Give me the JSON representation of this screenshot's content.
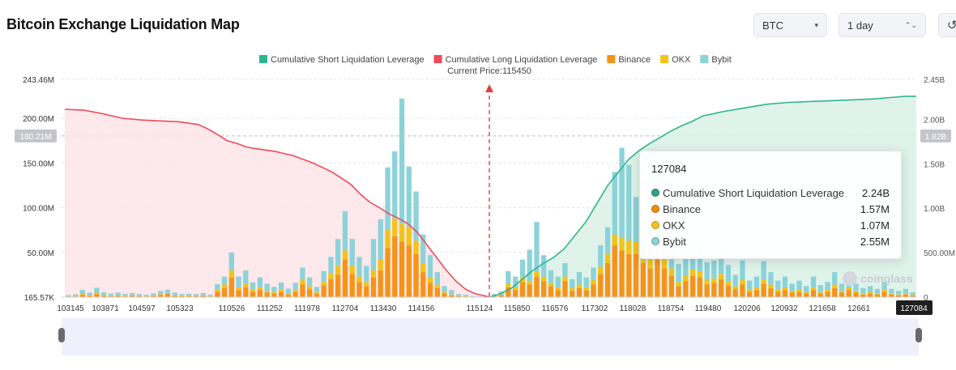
{
  "header": {
    "title": "Bitcoin Exchange Liquidation Map",
    "coin_select": {
      "value": "BTC",
      "caret": "▾"
    },
    "period_select": {
      "value": "1 day",
      "caret": "⌃⌄"
    },
    "reset_icon": "refresh-icon"
  },
  "colors": {
    "short_line": "#2fb58d",
    "short_fill": "#d9f1e8",
    "long_line": "#ef4a5c",
    "long_fill": "#fde4e7",
    "binance": "#f7931a",
    "okx": "#f3c31b",
    "bybit": "#8bd3d9",
    "current_price": "#e53e3e"
  },
  "tooltip": {
    "title": "127084",
    "rows": [
      {
        "label": "Cumulative Short Liquidation Leverage",
        "value": "2.24B",
        "color": "#2fa184"
      },
      {
        "label": "Binance",
        "value": "1.57M",
        "color": "#f08a12"
      },
      {
        "label": "OKX",
        "value": "1.07M",
        "color": "#f3c31b"
      },
      {
        "label": "Bybit",
        "value": "2.55M",
        "color": "#8bd3d9"
      }
    ]
  },
  "watermark": "coinglass",
  "chart_data": {
    "type": "bar",
    "legend": [
      {
        "name": "Cumulative Short Liquidation Leverage",
        "color": "#2fb58d"
      },
      {
        "name": "Cumulative Long Liquidation Leverage",
        "color": "#ef4a5c"
      },
      {
        "name": "Binance",
        "color": "#f7931a"
      },
      {
        "name": "OKX",
        "color": "#f3c31b"
      },
      {
        "name": "Bybit",
        "color": "#8bd3d9"
      }
    ],
    "legend_position": "top-center",
    "current_price_label": "Current Price:115450",
    "current_price": 115450,
    "x_ticks": [
      "103145",
      "103871",
      "104597",
      "105323",
      "110526",
      "111252",
      "111978",
      "112704",
      "113430",
      "114156",
      "115124",
      "115850",
      "116576",
      "117302",
      "118028",
      "118754",
      "119480",
      "120206",
      "120932",
      "121658",
      "12661"
    ],
    "x_highlight_label": "127084",
    "y_left": {
      "ticks": [
        "243.46M",
        "200.00M",
        "150.00M",
        "100.00M",
        "50.00M",
        "165.57K"
      ],
      "min": 165570,
      "max": 243460000,
      "marker": "180.21M"
    },
    "y_right": {
      "ticks": [
        "2.45B",
        "2.00B",
        "1.50B",
        "1.00B",
        "500.00M",
        "0"
      ],
      "min": 0,
      "max": 2450000000,
      "marker": "1.82B"
    },
    "grid": true,
    "bars_million": [
      [
        0.5,
        0.3,
        1.5
      ],
      [
        0.8,
        0.4,
        2.0
      ],
      [
        2.5,
        1.0,
        4.5
      ],
      [
        1.5,
        0.5,
        3.0
      ],
      [
        3.5,
        1.5,
        5.5
      ],
      [
        1.5,
        0.8,
        3.0
      ],
      [
        1.0,
        0.5,
        2.5
      ],
      [
        1.5,
        0.7,
        3.0
      ],
      [
        1.0,
        0.5,
        2.0
      ],
      [
        1.5,
        0.6,
        2.5
      ],
      [
        1.0,
        0.4,
        2.0
      ],
      [
        0.8,
        0.3,
        1.5
      ],
      [
        1.2,
        0.5,
        2.5
      ],
      [
        2.5,
        1.0,
        3.5
      ],
      [
        3.5,
        1.2,
        3.5
      ],
      [
        1.5,
        0.7,
        3.0
      ],
      [
        1.0,
        0.5,
        2.0
      ],
      [
        1.2,
        0.5,
        2.0
      ],
      [
        1.0,
        0.4,
        2.0
      ],
      [
        1.5,
        0.6,
        2.5
      ],
      [
        0.8,
        0.3,
        1.5
      ],
      [
        6.0,
        2.5,
        6.0
      ],
      [
        10.0,
        4.0,
        9.0
      ],
      [
        22.0,
        8.0,
        20.0
      ],
      [
        8.0,
        3.0,
        12.0
      ],
      [
        11.0,
        4.0,
        15.0
      ],
      [
        6.0,
        2.5,
        8.0
      ],
      [
        8.0,
        3.0,
        11.0
      ],
      [
        5.0,
        2.0,
        8.0
      ],
      [
        4.0,
        1.5,
        6.0
      ],
      [
        6.0,
        2.5,
        8.0
      ],
      [
        3.0,
        1.5,
        5.0
      ],
      [
        6.0,
        2.0,
        8.0
      ],
      [
        14.0,
        5.0,
        14.0
      ],
      [
        9.0,
        3.0,
        10.0
      ],
      [
        4.0,
        1.5,
        6.0
      ],
      [
        13.0,
        4.0,
        12.0
      ],
      [
        20.0,
        7.0,
        18.0
      ],
      [
        25.0,
        10.0,
        30.0
      ],
      [
        42.0,
        10.0,
        44.0
      ],
      [
        26.0,
        9.0,
        30.0
      ],
      [
        17.0,
        6.0,
        22.0
      ],
      [
        12.0,
        5.0,
        18.0
      ],
      [
        22.0,
        8.0,
        35.0
      ],
      [
        30.0,
        12.0,
        45.0
      ],
      [
        55.0,
        20.0,
        70.0
      ],
      [
        68.0,
        20.0,
        75.0
      ],
      [
        62.0,
        20.0,
        140.0
      ],
      [
        58.0,
        20.0,
        68.0
      ],
      [
        48.0,
        15.0,
        55.0
      ],
      [
        28.0,
        10.0,
        32.0
      ],
      [
        16.0,
        6.0,
        25.0
      ],
      [
        10.0,
        4.0,
        14.0
      ],
      [
        4.0,
        1.5,
        7.0
      ],
      [
        2.0,
        1.0,
        5.0
      ],
      [
        1.0,
        0.4,
        2.0
      ],
      [
        0.8,
        0.3,
        1.5
      ],
      [
        0.3,
        0.1,
        0.6
      ],
      [
        0.3,
        0.1,
        0.5
      ],
      [
        0.5,
        0.2,
        0.8
      ],
      [
        1.0,
        0.4,
        2.0
      ],
      [
        2.0,
        1.0,
        3.5
      ],
      [
        11.0,
        4.0,
        14.0
      ],
      [
        8.0,
        3.0,
        12.0
      ],
      [
        17.0,
        5.0,
        20.0
      ],
      [
        14.0,
        4.0,
        35.0
      ],
      [
        23.0,
        6.0,
        55.0
      ],
      [
        18.0,
        5.0,
        24.0
      ],
      [
        12.0,
        4.0,
        14.0
      ],
      [
        8.0,
        3.0,
        12.0
      ],
      [
        18.0,
        5.0,
        15.0
      ],
      [
        7.0,
        3.0,
        10.0
      ],
      [
        10.0,
        4.0,
        14.0
      ],
      [
        8.0,
        3.0,
        11.0
      ],
      [
        14.0,
        5.0,
        14.0
      ],
      [
        26.0,
        8.0,
        24.0
      ],
      [
        38.0,
        10.0,
        30.0
      ],
      [
        58.0,
        12.0,
        70.0
      ],
      [
        52.0,
        15.0,
        100.0
      ],
      [
        48.0,
        15.0,
        85.0
      ],
      [
        48.0,
        14.0,
        50.0
      ],
      [
        38.0,
        12.0,
        45.0
      ],
      [
        32.0,
        10.0,
        35.0
      ],
      [
        42.0,
        12.0,
        40.0
      ],
      [
        32.0,
        10.0,
        35.0
      ],
      [
        24.0,
        8.0,
        28.0
      ],
      [
        12.0,
        5.0,
        20.0
      ],
      [
        18.0,
        6.0,
        24.0
      ],
      [
        24.0,
        7.0,
        28.0
      ],
      [
        22.0,
        7.0,
        26.0
      ],
      [
        14.0,
        5.0,
        20.0
      ],
      [
        16.0,
        5.0,
        20.0
      ],
      [
        20.0,
        6.0,
        24.0
      ],
      [
        13.0,
        5.0,
        18.0
      ],
      [
        9.0,
        3.0,
        13.0
      ],
      [
        14.0,
        5.0,
        22.0
      ],
      [
        6.0,
        2.5,
        10.0
      ],
      [
        8.0,
        3.0,
        12.0
      ],
      [
        15.0,
        5.0,
        20.0
      ],
      [
        10.0,
        4.0,
        14.0
      ],
      [
        6.0,
        2.5,
        10.0
      ],
      [
        8.0,
        3.0,
        12.0
      ],
      [
        5.0,
        2.0,
        8.0
      ],
      [
        6.0,
        2.5,
        10.0
      ],
      [
        4.0,
        1.5,
        7.0
      ],
      [
        8.0,
        3.0,
        12.0
      ],
      [
        4.0,
        1.5,
        8.0
      ],
      [
        6.0,
        2.0,
        9.0
      ],
      [
        10.0,
        4.0,
        14.0
      ],
      [
        5.0,
        2.0,
        8.0
      ],
      [
        8.0,
        3.0,
        12.0
      ],
      [
        5.0,
        2.0,
        8.0
      ],
      [
        3.0,
        1.2,
        6.0
      ],
      [
        4.0,
        1.5,
        7.0
      ],
      [
        3.0,
        1.2,
        5.0
      ],
      [
        6.0,
        2.0,
        9.0
      ],
      [
        3.0,
        1.2,
        5.0
      ],
      [
        2.0,
        1.0,
        4.0
      ],
      [
        3.0,
        1.2,
        5.0
      ],
      [
        1.6,
        1.1,
        2.6
      ]
    ],
    "long_curve_million": [
      [
        0,
        210
      ],
      [
        10,
        209
      ],
      [
        20,
        205
      ],
      [
        30,
        200
      ],
      [
        40,
        198
      ],
      [
        50,
        197
      ],
      [
        60,
        196
      ],
      [
        70,
        193
      ],
      [
        75,
        188
      ],
      [
        80,
        182
      ],
      [
        85,
        175
      ],
      [
        90,
        172
      ],
      [
        95,
        168
      ],
      [
        100,
        166
      ],
      [
        110,
        163
      ],
      [
        120,
        158
      ],
      [
        130,
        150
      ],
      [
        140,
        140
      ],
      [
        150,
        126
      ],
      [
        155,
        115
      ],
      [
        160,
        106
      ],
      [
        165,
        100
      ],
      [
        170,
        93
      ],
      [
        175,
        88
      ],
      [
        180,
        82
      ],
      [
        185,
        72
      ],
      [
        190,
        58
      ],
      [
        195,
        44
      ],
      [
        200,
        30
      ],
      [
        205,
        18
      ],
      [
        210,
        9
      ],
      [
        215,
        4
      ],
      [
        220,
        1.5
      ],
      [
        223,
        0
      ]
    ],
    "short_curve_billion": [
      [
        0,
        0
      ],
      [
        5,
        0.04
      ],
      [
        10,
        0.1
      ],
      [
        15,
        0.2
      ],
      [
        20,
        0.3
      ],
      [
        25,
        0.38
      ],
      [
        30,
        0.45
      ],
      [
        35,
        0.55
      ],
      [
        40,
        0.7
      ],
      [
        45,
        0.85
      ],
      [
        50,
        1.05
      ],
      [
        55,
        1.25
      ],
      [
        60,
        1.4
      ],
      [
        65,
        1.55
      ],
      [
        70,
        1.65
      ],
      [
        75,
        1.73
      ],
      [
        80,
        1.8
      ],
      [
        85,
        1.87
      ],
      [
        90,
        1.93
      ],
      [
        95,
        1.98
      ],
      [
        100,
        2.04
      ],
      [
        110,
        2.09
      ],
      [
        120,
        2.13
      ],
      [
        130,
        2.17
      ],
      [
        140,
        2.19
      ],
      [
        150,
        2.2
      ],
      [
        160,
        2.21
      ],
      [
        170,
        2.22
      ],
      [
        180,
        2.23
      ],
      [
        190,
        2.25
      ],
      [
        195,
        2.26
      ],
      [
        200,
        2.26
      ]
    ]
  }
}
